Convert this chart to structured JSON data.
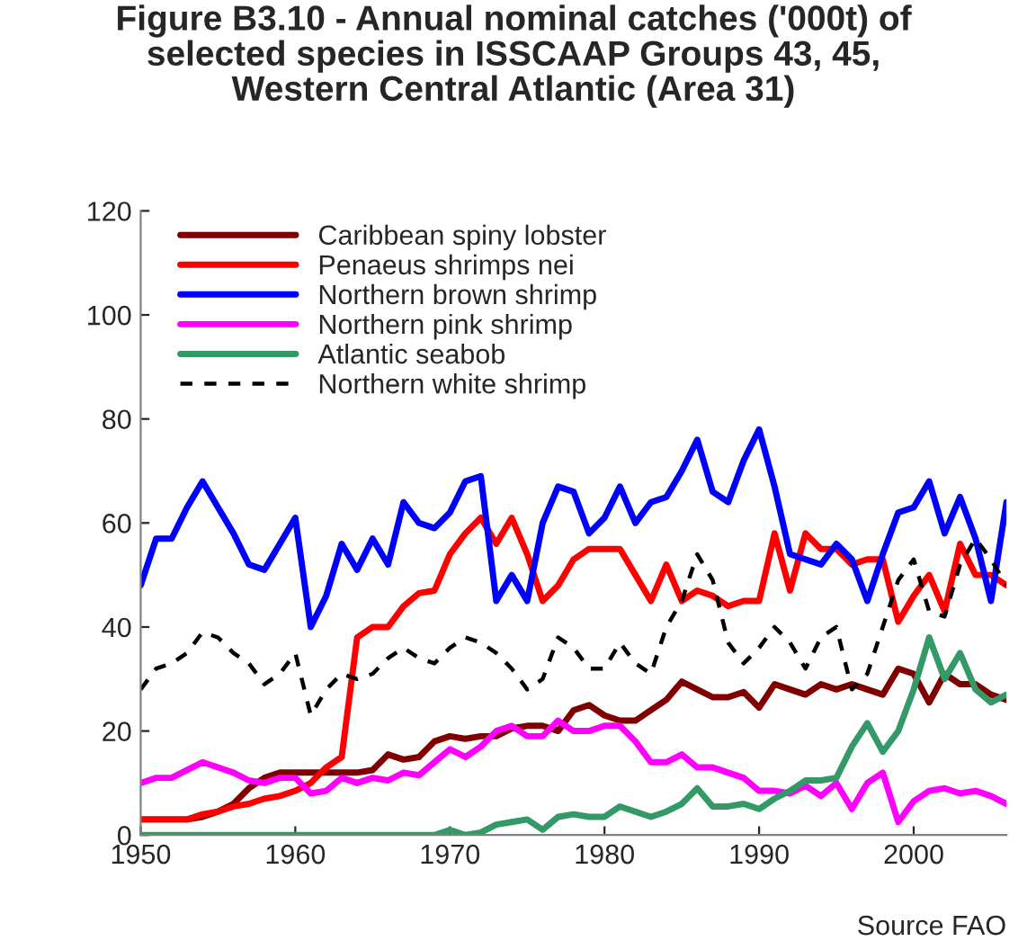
{
  "chart_data": {
    "type": "line",
    "title": "Figure B3.10 - Annual nominal catches ('000t) of\nselected species in ISSCAAP Groups 43, 45,\nWestern Central Atlantic (Area 31)",
    "x": [
      1950,
      1951,
      1952,
      1953,
      1954,
      1955,
      1956,
      1957,
      1958,
      1959,
      1960,
      1961,
      1962,
      1963,
      1964,
      1965,
      1966,
      1967,
      1968,
      1969,
      1970,
      1971,
      1972,
      1973,
      1974,
      1975,
      1976,
      1977,
      1978,
      1979,
      1980,
      1981,
      1982,
      1983,
      1984,
      1985,
      1986,
      1987,
      1988,
      1989,
      1990,
      1991,
      1992,
      1993,
      1994,
      1995,
      1996,
      1997,
      1998,
      1999,
      2000,
      2001,
      2002,
      2003,
      2004,
      2005,
      2006
    ],
    "series": [
      {
        "name": "Caribbean spiny lobster",
        "color": "#800000",
        "line_style": "solid",
        "values": [
          3,
          3,
          3,
          3,
          3.5,
          4.5,
          6,
          9,
          11,
          12,
          12,
          12,
          12,
          12,
          12,
          12.5,
          15.5,
          14.5,
          15,
          18,
          19,
          18.5,
          19,
          19,
          20.5,
          21,
          21,
          20,
          24,
          25,
          23,
          22,
          22,
          24,
          26,
          29.5,
          28,
          26.5,
          26.5,
          27.5,
          24.5,
          29,
          28,
          27,
          29,
          28,
          29,
          28,
          27,
          32,
          31,
          25.5,
          31,
          29,
          29,
          27,
          26
        ]
      },
      {
        "name": "Penaeus shrimps nei",
        "color": "#ff0000",
        "line_style": "solid",
        "values": [
          3,
          3,
          3,
          3,
          4,
          4.5,
          5.5,
          6,
          7,
          7.5,
          8.5,
          10,
          13,
          15,
          38,
          40,
          40,
          44,
          46.5,
          47,
          54,
          58,
          61,
          56,
          61,
          54,
          45,
          48,
          53,
          55,
          55,
          55,
          50,
          45,
          52,
          45,
          47,
          46,
          44,
          45,
          45,
          58,
          47,
          58,
          55,
          55,
          52,
          53,
          53,
          41,
          46,
          50,
          43,
          56,
          50,
          50,
          48
        ]
      },
      {
        "name": "Northern brown shrimp",
        "color": "#0000ff",
        "line_style": "solid",
        "values": [
          48,
          57,
          57,
          63,
          68,
          63,
          58,
          52,
          51,
          56,
          61,
          40,
          46,
          56,
          51,
          57,
          52,
          64,
          60,
          59,
          62,
          68,
          69,
          45,
          50,
          45,
          60,
          67,
          66,
          58,
          61,
          67,
          60,
          64,
          65,
          70,
          76,
          66,
          64,
          72,
          78,
          67,
          54,
          53,
          52,
          56,
          53,
          45,
          54,
          62,
          63,
          68,
          58,
          65,
          57,
          45,
          64
        ]
      },
      {
        "name": "Northern pink shrimp",
        "color": "#ff00ff",
        "line_style": "solid",
        "values": [
          10,
          11,
          11,
          12.5,
          14,
          13,
          12,
          10.5,
          10,
          11,
          11,
          8,
          8.5,
          11,
          10,
          11,
          10.5,
          12,
          11.5,
          14,
          16.5,
          15,
          17,
          20,
          21,
          19,
          19,
          22,
          20,
          20,
          21,
          21,
          18,
          14,
          14,
          15.5,
          13,
          13,
          12,
          11,
          8.5,
          8.5,
          8,
          9.5,
          7.5,
          10,
          5,
          10,
          12,
          2.5,
          6.5,
          8.5,
          9,
          8,
          8.5,
          7.5,
          6
        ]
      },
      {
        "name": "Atlantic seabob",
        "color": "#339966",
        "line_style": "solid",
        "values": [
          0,
          0,
          0,
          0,
          0,
          0,
          0,
          0,
          0,
          0,
          0,
          0,
          0,
          0,
          0,
          0,
          0,
          0,
          0,
          0,
          1,
          0,
          0.5,
          2,
          2.5,
          3,
          1,
          3.5,
          4,
          3.5,
          3.5,
          5.5,
          4.5,
          3.5,
          4.5,
          6,
          9,
          5.5,
          5.5,
          6,
          5,
          7,
          8.5,
          10.5,
          10.5,
          11,
          17,
          21.5,
          16,
          20,
          28,
          38,
          30,
          35,
          28,
          25.5,
          27
        ]
      },
      {
        "name": "Northern white shrimp",
        "color": "#000000",
        "line_style": "dashed",
        "values": [
          28,
          32,
          33,
          35,
          39,
          38,
          35,
          33,
          29,
          31,
          35,
          23,
          28,
          31,
          30,
          31,
          34,
          36,
          34,
          33,
          36,
          38,
          37,
          35,
          32,
          28,
          30,
          38,
          36,
          32,
          32,
          37,
          33,
          31,
          40,
          45,
          54,
          49,
          37,
          33,
          36,
          40,
          37,
          32,
          38,
          40,
          28,
          31,
          40,
          49,
          53,
          43,
          42,
          52,
          57,
          53,
          48
        ]
      }
    ],
    "xlim": [
      1950,
      2006
    ],
    "xticks": [
      1950,
      1960,
      1970,
      1980,
      1990,
      2000
    ],
    "ylim": [
      0,
      120
    ],
    "yticks": [
      0,
      20,
      40,
      60,
      80,
      100,
      120
    ],
    "grid": false,
    "legend": "top left",
    "annotations": [
      "Source FAO"
    ]
  }
}
